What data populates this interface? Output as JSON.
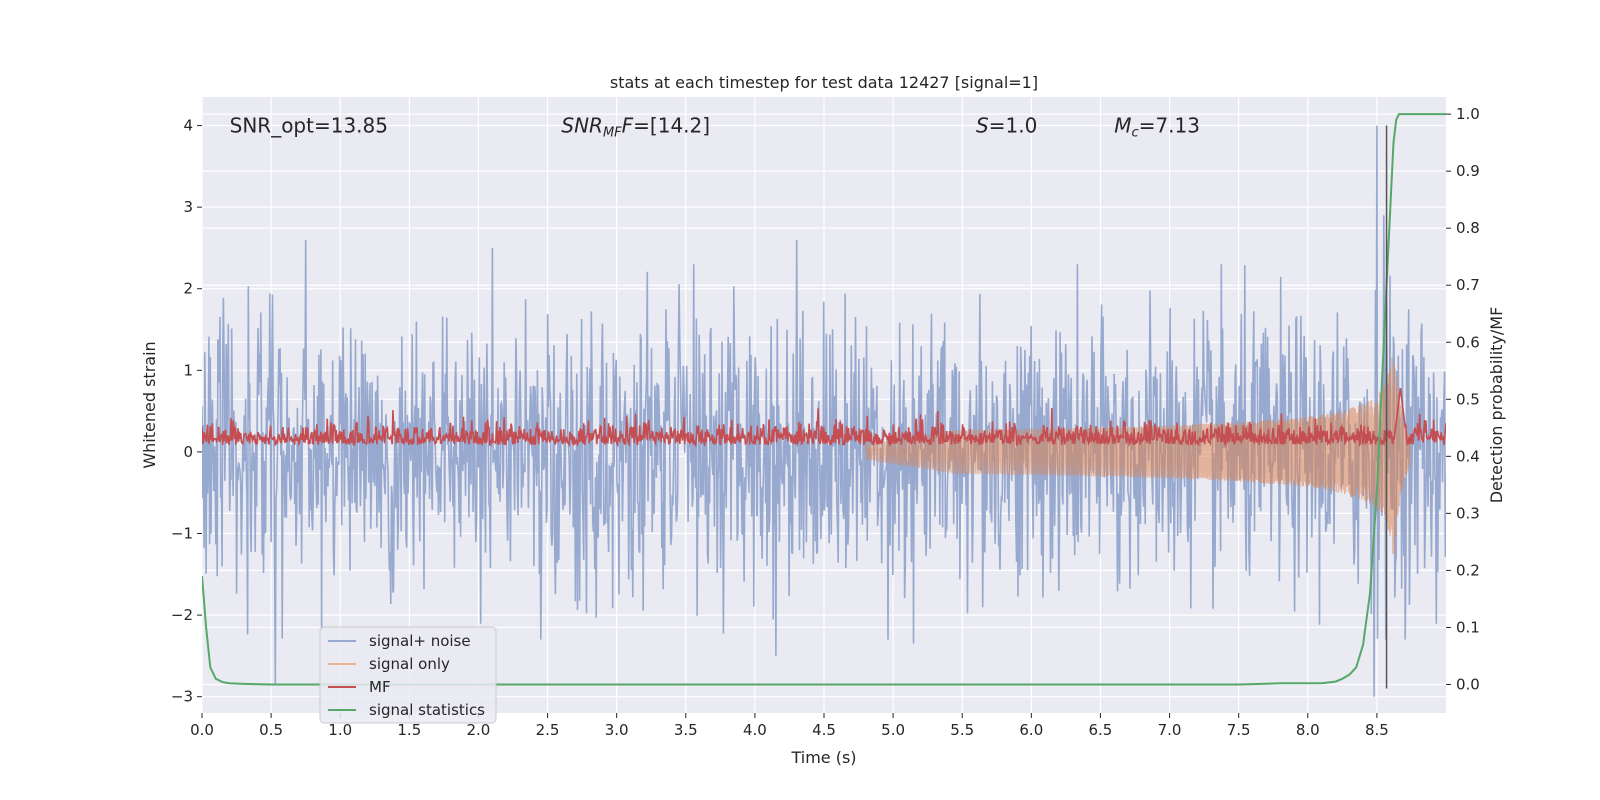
{
  "chart_data": {
    "type": "line",
    "title": "stats at each timestep for test data 12427 [signal=1]",
    "xlabel": "Time (s)",
    "ylabel": "Whitened strain",
    "y2label": "Detection probability/MF",
    "xlim": [
      0,
      9.0
    ],
    "ylim": [
      -3.2,
      4.35
    ],
    "y2lim": [
      -0.05,
      1.03
    ],
    "xticks": [
      0.0,
      0.5,
      1.0,
      1.5,
      2.0,
      2.5,
      3.0,
      3.5,
      4.0,
      4.5,
      5.0,
      5.5,
      6.0,
      6.5,
      7.0,
      7.5,
      8.0,
      8.5
    ],
    "xtick_labels": [
      "0.0",
      "0.5",
      "1.0",
      "1.5",
      "2.0",
      "2.5",
      "3.0",
      "3.5",
      "4.0",
      "4.5",
      "5.0",
      "5.5",
      "6.0",
      "6.5",
      "7.0",
      "7.5",
      "8.0",
      "8.5"
    ],
    "yticks": [
      -3,
      -2,
      -1,
      0,
      1,
      2,
      3,
      4
    ],
    "ytick_labels": [
      "−3",
      "−2",
      "−1",
      "0",
      "1",
      "2",
      "3",
      "4"
    ],
    "y2ticks": [
      0.0,
      0.1,
      0.2,
      0.3,
      0.4,
      0.5,
      0.6,
      0.7,
      0.8,
      0.9,
      1.0
    ],
    "y2tick_labels": [
      "0.0",
      "0.1",
      "0.2",
      "0.3",
      "0.4",
      "0.5",
      "0.6",
      "0.7",
      "0.8",
      "0.9",
      "1.0"
    ],
    "annotations": [
      {
        "id": "snr-opt",
        "parts": [
          {
            "t": "SNR_opt=13.85",
            "style": "normal"
          }
        ],
        "x": 0.2,
        "y": 4.0
      },
      {
        "id": "snr-mf",
        "parts": [
          {
            "t": "SNR",
            "style": "italic"
          },
          {
            "t": "MF",
            "style": "italic-sub"
          },
          {
            "t": "F",
            "style": "italic"
          },
          {
            "t": "=[14.2]",
            "style": "normal"
          }
        ],
        "x": 2.6,
        "y": 4.0
      },
      {
        "id": "s-value",
        "parts": [
          {
            "t": "S",
            "style": "italic"
          },
          {
            "t": "=1.0",
            "style": "normal"
          }
        ],
        "x": 5.6,
        "y": 4.0
      },
      {
        "id": "mc-value",
        "parts": [
          {
            "t": "M",
            "style": "italic"
          },
          {
            "t": "c",
            "style": "italic-sub"
          },
          {
            "t": "=7.13",
            "style": "normal"
          }
        ],
        "x": 6.6,
        "y": 4.0
      }
    ],
    "vline": {
      "x": 8.57,
      "y": [
        -2.9,
        4.0
      ],
      "color": "#555555"
    },
    "series": [
      {
        "name": "signal+ noise",
        "axis": "left",
        "color": "#97a9cf",
        "kind": "noise",
        "samples": 1800,
        "envelope": [
          [
            0,
            1.05
          ],
          [
            8.3,
            1.05
          ],
          [
            8.55,
            1.25
          ],
          [
            9.0,
            1.1
          ]
        ],
        "spikes": [
          [
            0.75,
            2.6
          ],
          [
            2.1,
            2.5
          ],
          [
            4.15,
            2.5
          ],
          [
            4.3,
            2.6
          ],
          [
            5.15,
            2.4
          ],
          [
            8.5,
            4.0
          ],
          [
            8.55,
            2.9
          ],
          [
            0.53,
            -2.85
          ],
          [
            8.48,
            -3.0
          ],
          [
            4.15,
            -2.5
          ],
          [
            2.45,
            -2.3
          ],
          [
            5.15,
            -2.35
          ]
        ]
      },
      {
        "name": "signal only",
        "axis": "left",
        "color": "#dd8452",
        "kind": "chirp",
        "t_start": 4.8,
        "t_merge": 8.62,
        "amp_start": 0.05,
        "amp_peak": 1.35,
        "ringdown": 0.06
      },
      {
        "name": "MF",
        "axis": "right",
        "color": "#c44e52",
        "kind": "mf",
        "samples": 1800,
        "baseline": 0.42,
        "jitter": 0.018,
        "peak_x": 8.67,
        "peak_y": 0.52
      },
      {
        "name": "signal statistics",
        "axis": "right",
        "color": "#55a868",
        "kind": "line",
        "x": [
          0.0,
          0.03,
          0.06,
          0.1,
          0.15,
          0.2,
          0.3,
          0.5,
          1.0,
          2.0,
          4.0,
          6.0,
          7.5,
          7.8,
          8.0,
          8.1,
          8.2,
          8.25,
          8.3,
          8.35,
          8.4,
          8.45,
          8.5,
          8.55,
          8.6,
          8.62,
          8.64,
          8.66,
          8.7,
          8.75,
          8.8,
          8.9,
          9.0
        ],
        "y": [
          0.19,
          0.1,
          0.03,
          0.01,
          0.004,
          0.002,
          0.001,
          0.0,
          0.0,
          0.0,
          0.0,
          0.0,
          0.0,
          0.002,
          0.002,
          0.002,
          0.005,
          0.01,
          0.017,
          0.03,
          0.07,
          0.16,
          0.34,
          0.6,
          0.85,
          0.95,
          0.99,
          1.0,
          1.0,
          1.0,
          1.0,
          1.0,
          1.0
        ]
      }
    ],
    "legend": {
      "placement": "lower-left",
      "entries": [
        {
          "label": "signal+ noise",
          "color": "#97a9cf"
        },
        {
          "label": "signal only",
          "color": "#e9b396"
        },
        {
          "label": "MF",
          "color": "#c44e52"
        },
        {
          "label": "signal statistics",
          "color": "#55a868"
        }
      ]
    },
    "grid": true
  },
  "colors": {
    "axes_bg": "#eaeaf2",
    "grid": "#ffffff",
    "text": "#262626"
  }
}
